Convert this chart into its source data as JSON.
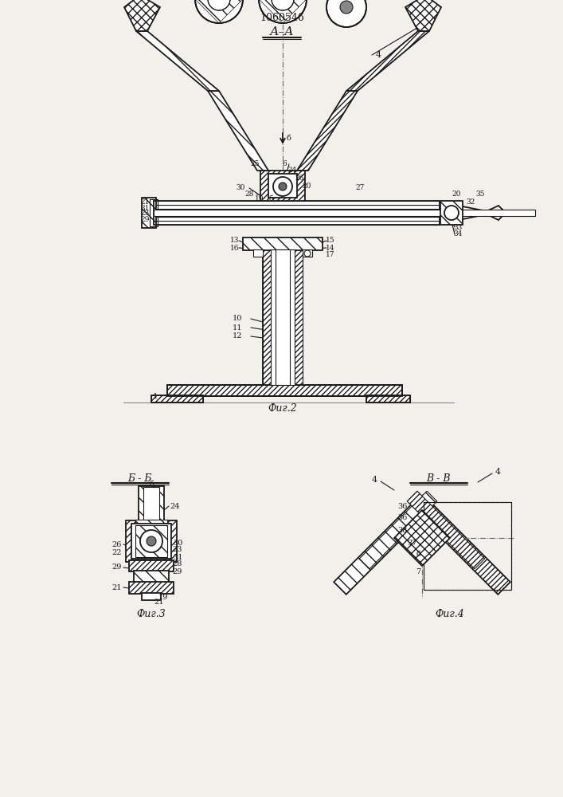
{
  "patent_number": "1060546",
  "section_aa": "А–А",
  "fig2_label": "Фиг.2",
  "fig3_label": "Фиг.3",
  "fig4_label": "Фиг.4",
  "section_bb": "Б - Б",
  "section_vv": "В - В",
  "bg_color": "#f2f0eb",
  "line_color": "#1a1a1a"
}
